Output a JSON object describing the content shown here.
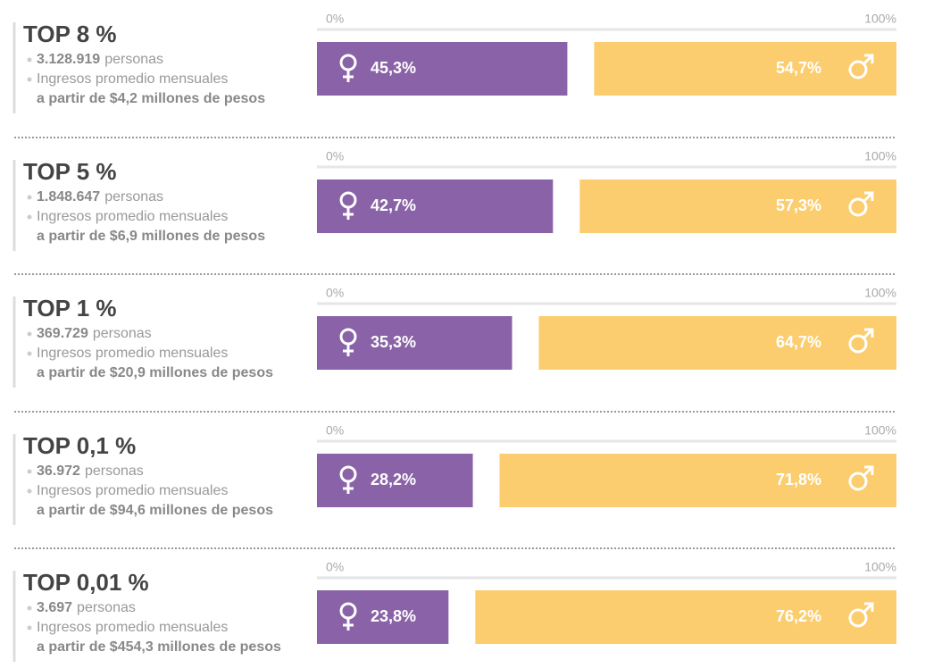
{
  "chart_data": [
    {
      "type": "split-bar",
      "title": "TOP 8 %",
      "people": "3.128.919",
      "people_unit": "personas",
      "income_label": "Ingresos promedio mensuales",
      "income": "a partir de $4,2 millones de pesos",
      "xlim": [
        0,
        100
      ],
      "xticks": [
        {
          "value": 0,
          "label": "0%"
        },
        {
          "value": 100,
          "label": "100%"
        }
      ],
      "series": [
        {
          "color": "#8a62a7",
          "values": [
            45.3
          ],
          "value_labels": [
            "45,3%"
          ]
        },
        {
          "color": "#fbcd6e",
          "values": [
            54.7
          ],
          "value_labels": [
            "54,7%"
          ]
        }
      ]
    },
    {
      "type": "split-bar",
      "title": "TOP 5 %",
      "people": "1.848.647",
      "people_unit": "personas",
      "income_label": "Ingresos promedio mensuales",
      "income": "a partir de $6,9 millones de pesos",
      "xlim": [
        0,
        100
      ],
      "xticks": [
        {
          "value": 0,
          "label": "0%"
        },
        {
          "value": 100,
          "label": "100%"
        }
      ],
      "series": [
        {
          "color": "#8a62a7",
          "values": [
            42.7
          ],
          "value_labels": [
            "42,7%"
          ]
        },
        {
          "color": "#fbcd6e",
          "values": [
            57.3
          ],
          "value_labels": [
            "57,3%"
          ]
        }
      ]
    },
    {
      "type": "split-bar",
      "title": "TOP 1 %",
      "people": "369.729",
      "people_unit": "personas",
      "income_label": "Ingresos promedio mensuales",
      "income": "a partir de $20,9 millones de pesos",
      "xlim": [
        0,
        100
      ],
      "xticks": [
        {
          "value": 0,
          "label": "0%"
        },
        {
          "value": 100,
          "label": "100%"
        }
      ],
      "series": [
        {
          "color": "#8a62a7",
          "values": [
            35.3
          ],
          "value_labels": [
            "35,3%"
          ]
        },
        {
          "color": "#fbcd6e",
          "values": [
            64.7
          ],
          "value_labels": [
            "64,7%"
          ]
        }
      ]
    },
    {
      "type": "split-bar",
      "title": "TOP 0,1 %",
      "people": "36.972",
      "people_unit": "personas",
      "income_label": "Ingresos promedio mensuales",
      "income": "a partir de $94,6 millones de pesos",
      "xlim": [
        0,
        100
      ],
      "xticks": [
        {
          "value": 0,
          "label": "0%"
        },
        {
          "value": 100,
          "label": "100%"
        }
      ],
      "series": [
        {
          "color": "#8a62a7",
          "values": [
            28.2
          ],
          "value_labels": [
            "28,2%"
          ]
        },
        {
          "color": "#fbcd6e",
          "values": [
            71.8
          ],
          "value_labels": [
            "71,8%"
          ]
        }
      ]
    },
    {
      "type": "split-bar",
      "title": "TOP 0,01 %",
      "people": "3.697",
      "people_unit": "personas",
      "income_label": "Ingresos promedio mensuales",
      "income": "a partir de $454,3 millones de pesos",
      "xlim": [
        0,
        100
      ],
      "xticks": [
        {
          "value": 0,
          "label": "0%"
        },
        {
          "value": 100,
          "label": "100%"
        }
      ],
      "series": [
        {
          "color": "#8a62a7",
          "values": [
            23.8
          ],
          "value_labels": [
            "23,8%"
          ]
        },
        {
          "color": "#fbcd6e",
          "values": [
            76.2
          ],
          "value_labels": [
            "76,2%"
          ]
        }
      ]
    }
  ]
}
